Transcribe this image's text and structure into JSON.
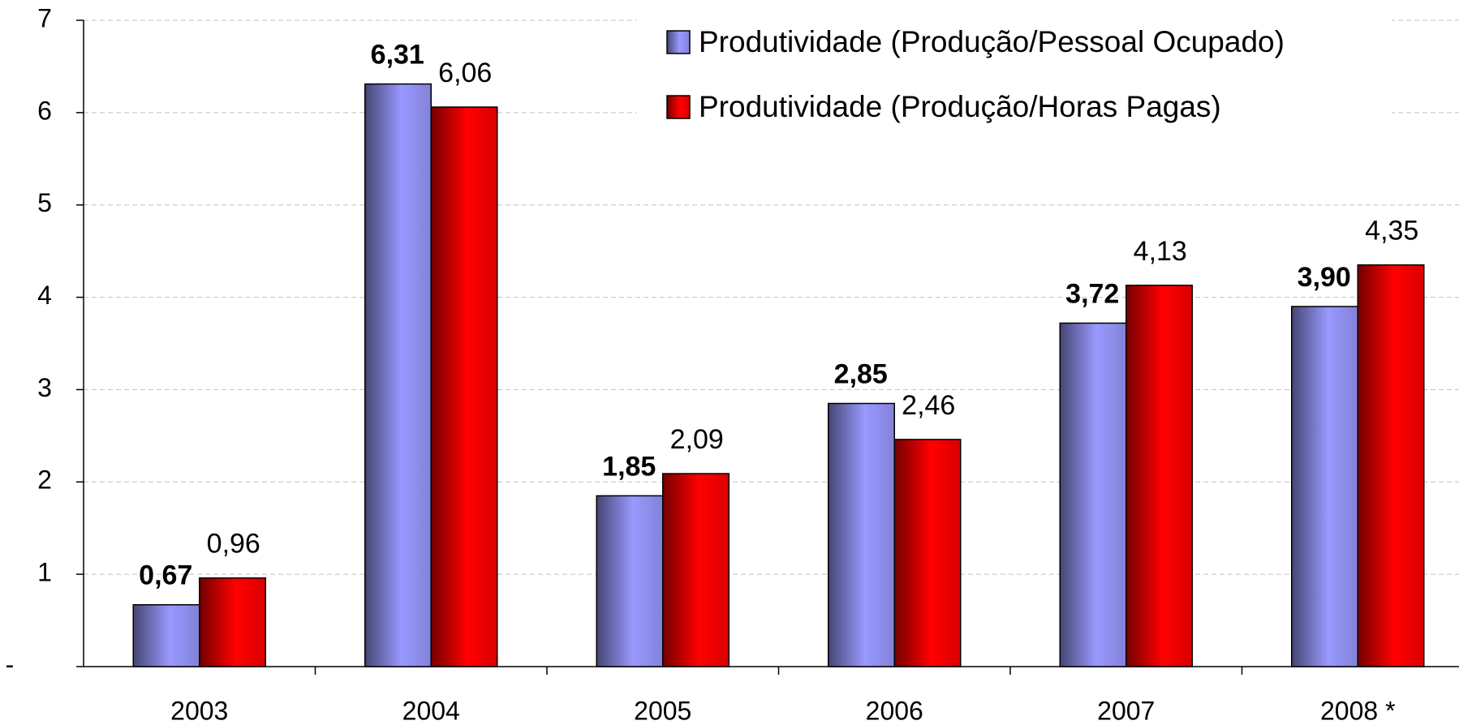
{
  "chart_data": {
    "type": "bar",
    "categories": [
      "2003",
      "2004",
      "2005",
      "2006",
      "2007",
      "2008 *"
    ],
    "series": [
      {
        "name": "Produtividade (Produção/Pessoal Ocupado)",
        "color": "#9999ff",
        "values": [
          0.67,
          6.31,
          1.85,
          2.85,
          3.72,
          3.9
        ],
        "value_labels": [
          "0,67",
          "6,31",
          "1,85",
          "2,85",
          "3,72",
          "3,90"
        ]
      },
      {
        "name": "Produtividade (Produção/Horas Pagas)",
        "color": "#ff0000",
        "values": [
          0.96,
          6.06,
          2.09,
          2.46,
          4.13,
          4.35
        ],
        "value_labels": [
          "0,96",
          "6,06",
          "2,09",
          "2,46",
          "4,13",
          "4,35"
        ]
      }
    ],
    "ylim": [
      0,
      7
    ],
    "yticks": [
      {
        "value": 0,
        "label": "-"
      },
      1,
      2,
      3,
      4,
      5,
      6,
      7
    ],
    "grid": true,
    "legend": "top-right"
  }
}
